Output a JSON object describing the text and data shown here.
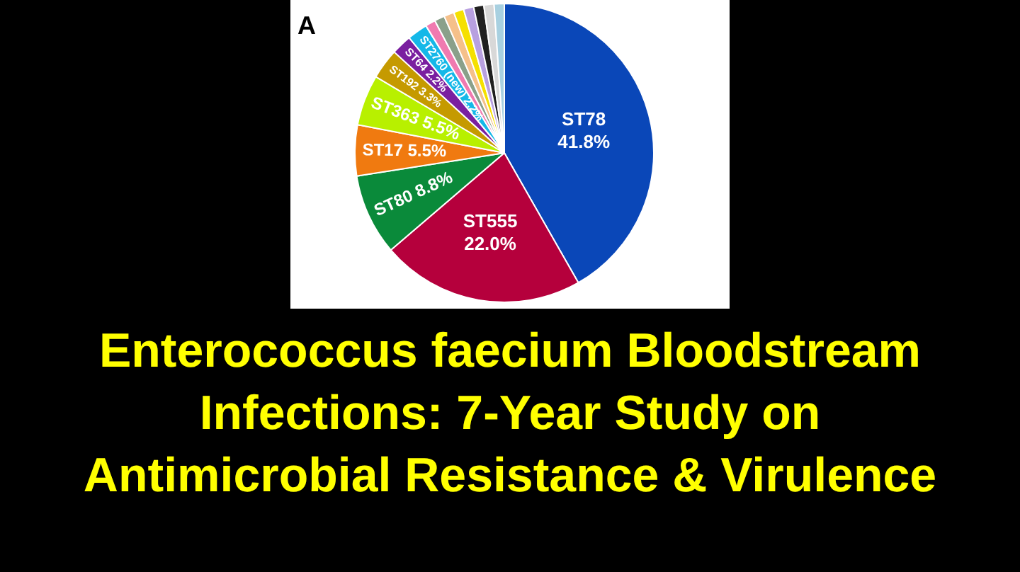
{
  "chart_data": {
    "type": "pie",
    "title": "Enterococcus faecium Bloodstream Infections: 7-Year Study on Antimicrobial Resistance & Virulence",
    "annotations": [
      "A"
    ],
    "categories": [
      "ST78",
      "ST555",
      "ST80",
      "ST17",
      "ST363",
      "ST192",
      "ST64",
      "ST2760 (new)",
      null,
      null,
      null,
      null,
      null,
      null,
      null,
      null
    ],
    "values": [
      41.8,
      22.0,
      8.8,
      5.5,
      5.5,
      3.3,
      2.2,
      2.2,
      1.1,
      1.1,
      1.1,
      1.1,
      1.1,
      1.1,
      1.1,
      1.1
    ],
    "value_labels": [
      "41.8%",
      "22.0%",
      "8.8%",
      "5.5%",
      "5.5%",
      "3.3%",
      "2.2%",
      "2.2%",
      null,
      null,
      null,
      null,
      null,
      null,
      null,
      null
    ],
    "colors": [
      "#0a47b8",
      "#b5003c",
      "#0a8a3a",
      "#f07a10",
      "#b8f000",
      "#c59a00",
      "#7a1fa0",
      "#15b8e8",
      "#f07ab0",
      "#8aa08a",
      "#f5c08a",
      "#f5e000",
      "#b8a0e0",
      "#202020",
      "#d8d8d8",
      "#a8d0e0"
    ]
  }
}
